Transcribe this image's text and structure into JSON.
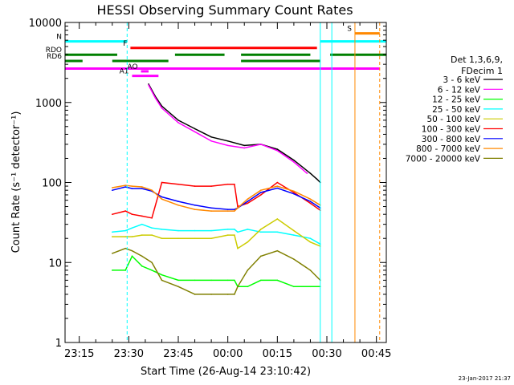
{
  "chart_data": {
    "type": "line",
    "title": "HESSI Observing Summary Count Rates",
    "xlabel": "Start Time (26-Aug-14 23:10:42)",
    "ylabel": "Count Rate (s⁻¹ detector⁻¹)",
    "y_scale": "log",
    "ylim": [
      1,
      10000
    ],
    "xlim_minutes_from_2300": [
      10.7,
      108
    ],
    "x_tick_labels": [
      "23:15",
      "23:30",
      "23:45",
      "00:00",
      "00:15",
      "00:30",
      "00:45"
    ],
    "y_tick_labels": [
      "1",
      "10",
      "100",
      "1000",
      "10000"
    ],
    "legend_title": [
      "Det 1,3,6,9,",
      "FDecim 1"
    ],
    "series": [
      {
        "name": "3 - 6 keV",
        "color": "#000000",
        "x": [
          36,
          38,
          40,
          45,
          50,
          55,
          60,
          65,
          70,
          75,
          80,
          85,
          87,
          88
        ],
        "y": [
          1700,
          1200,
          900,
          600,
          470,
          370,
          330,
          290,
          300,
          260,
          190,
          130,
          110,
          100
        ]
      },
      {
        "name": "6 - 12 keV",
        "color": "#ff00ff",
        "x": [
          36,
          38,
          40,
          45,
          50,
          55,
          60,
          65,
          70,
          75,
          80,
          84
        ],
        "y": [
          1650,
          1150,
          850,
          560,
          430,
          330,
          290,
          270,
          300,
          250,
          180,
          130
        ]
      },
      {
        "name": "12 - 25 keV",
        "color": "#00ff00",
        "x": [
          25,
          29,
          31,
          34,
          37,
          40,
          45,
          50,
          55,
          60,
          62,
          63,
          66,
          70,
          75,
          80,
          85,
          88
        ],
        "y": [
          8,
          8,
          12,
          9,
          8,
          7,
          6,
          6,
          6,
          6,
          6,
          5,
          5,
          6,
          6,
          5,
          5,
          5
        ]
      },
      {
        "name": "25 - 50 keV",
        "color": "#00ffff",
        "x": [
          25,
          29,
          31,
          34,
          37,
          40,
          45,
          50,
          55,
          60,
          62,
          63,
          66,
          70,
          75,
          80,
          85,
          88
        ],
        "y": [
          24,
          25,
          27,
          30,
          27,
          26,
          25,
          25,
          25,
          26,
          26,
          24,
          26,
          24,
          24,
          22,
          20,
          17
        ]
      },
      {
        "name": "50 - 100 keV",
        "color": "#cccc00",
        "x": [
          25,
          29,
          31,
          34,
          37,
          40,
          45,
          50,
          55,
          60,
          62,
          63,
          66,
          70,
          75,
          80,
          85,
          88
        ],
        "y": [
          21,
          21,
          21,
          22,
          22,
          20,
          20,
          20,
          20,
          22,
          22,
          15,
          18,
          26,
          35,
          25,
          18,
          16
        ]
      },
      {
        "name": "100 - 300 keV",
        "color": "#ff0000",
        "x": [
          25,
          29,
          31,
          34,
          37,
          40,
          45,
          50,
          55,
          60,
          62,
          63,
          66,
          70,
          75,
          80,
          85,
          88
        ],
        "y": [
          40,
          44,
          40,
          38,
          36,
          100,
          95,
          90,
          90,
          95,
          95,
          50,
          55,
          70,
          100,
          75,
          55,
          45
        ]
      },
      {
        "name": "300 - 800 keV",
        "color": "#0000ff",
        "x": [
          25,
          29,
          31,
          34,
          37,
          40,
          45,
          50,
          55,
          60,
          62,
          63,
          66,
          70,
          75,
          80,
          85,
          88
        ],
        "y": [
          80,
          88,
          84,
          84,
          78,
          66,
          58,
          52,
          48,
          46,
          46,
          48,
          58,
          75,
          85,
          72,
          58,
          48
        ]
      },
      {
        "name": "800 - 7000 keV",
        "color": "#ff8800",
        "x": [
          25,
          29,
          31,
          34,
          37,
          40,
          45,
          50,
          55,
          60,
          62,
          63,
          66,
          70,
          75,
          80,
          85,
          88
        ],
        "y": [
          86,
          92,
          90,
          88,
          80,
          62,
          52,
          46,
          44,
          44,
          44,
          48,
          62,
          80,
          90,
          78,
          62,
          52
        ]
      },
      {
        "name": "7000 - 20000 keV",
        "color": "#808000",
        "x": [
          25,
          29,
          31,
          34,
          37,
          40,
          45,
          50,
          55,
          60,
          62,
          63,
          66,
          70,
          75,
          80,
          85,
          88
        ],
        "y": [
          13,
          15,
          14,
          12,
          10,
          6,
          5,
          4,
          4,
          4,
          4,
          5,
          8,
          12,
          14,
          11,
          8,
          6
        ]
      }
    ],
    "flag_bars": [
      {
        "label": "N",
        "color": "#00ffff",
        "y_value": 5800,
        "segments": [
          [
            10.7,
            29.5
          ],
          [
            88,
            108
          ]
        ]
      },
      {
        "label": "S",
        "color": "#ff8800",
        "y_value": 7300,
        "segments": [
          [
            98.5,
            106
          ]
        ]
      },
      {
        "label": "F",
        "color": "#ff0000",
        "y_value": 4800,
        "segments": [
          [
            30.5,
            87
          ]
        ]
      },
      {
        "label": "RDO",
        "color": "#008000",
        "y_value": 3950,
        "segments": [
          [
            10.7,
            26.5
          ],
          [
            44,
            59
          ],
          [
            64,
            85
          ],
          [
            91,
            108
          ]
        ]
      },
      {
        "label": "RD6",
        "color": "#008000",
        "y_value": 3300,
        "segments": [
          [
            10.7,
            16
          ],
          [
            25,
            42
          ],
          [
            64,
            88
          ]
        ]
      },
      {
        "label": "",
        "color": "#ff00ff",
        "y_value": 2650,
        "segments": [
          [
            10.7,
            106
          ]
        ]
      },
      {
        "label": "A1",
        "color": "#ff00ff",
        "y_value": 2150,
        "segments": [
          [
            31,
            39
          ]
        ]
      },
      {
        "label": "AO",
        "color": "#ff00ff",
        "y_value": 2450,
        "segments": [
          [
            33.7,
            36
          ]
        ]
      }
    ],
    "vertical_lines": [
      {
        "x": 10.7,
        "color": "#00ffff",
        "style": "solid"
      },
      {
        "x": 29.5,
        "color": "#00ffff",
        "style": "dashed"
      },
      {
        "x": 88,
        "color": "#00ffff",
        "style": "solid"
      },
      {
        "x": 91.5,
        "color": "#00ffff",
        "style": "solid"
      },
      {
        "x": 98.5,
        "color": "#ff8800",
        "style": "solid"
      },
      {
        "x": 106,
        "color": "#ff8800",
        "style": "dashed"
      }
    ],
    "footer_date": "23-Jan-2017 21:37"
  }
}
